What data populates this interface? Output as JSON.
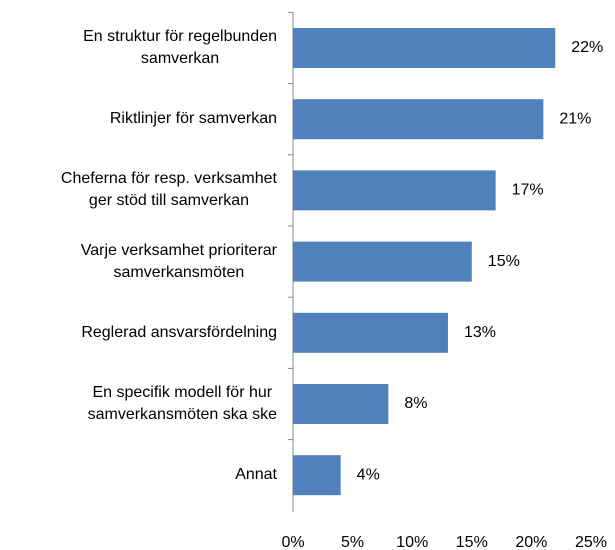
{
  "chart_data": {
    "type": "barh",
    "categories": [
      "En struktur för regelbunden\nsamverkan",
      "Riktlinjer för samverkan",
      "Cheferna för resp. verksamhet\nger stöd till samverkan",
      "Varje verksamhet prioriterar\nsamverkansmöten",
      "Reglerad ansvarsfördelning",
      "En specifik modell för hur\nsamverkansmöten ska ske",
      "Annat"
    ],
    "values": [
      22,
      21,
      17,
      15,
      13,
      8,
      4
    ],
    "value_labels": [
      "22%",
      "21%",
      "17%",
      "15%",
      "13%",
      "8%",
      "4%"
    ],
    "color": "#4f81bd",
    "xlim": [
      0,
      25
    ],
    "xticks": [
      {
        "value": 0,
        "label": "0%"
      },
      {
        "value": 5,
        "label": "5%"
      },
      {
        "value": 10,
        "label": "10%"
      },
      {
        "value": 15,
        "label": "15%"
      },
      {
        "value": 20,
        "label": "20%"
      },
      {
        "value": 25,
        "label": "25%"
      }
    ]
  }
}
